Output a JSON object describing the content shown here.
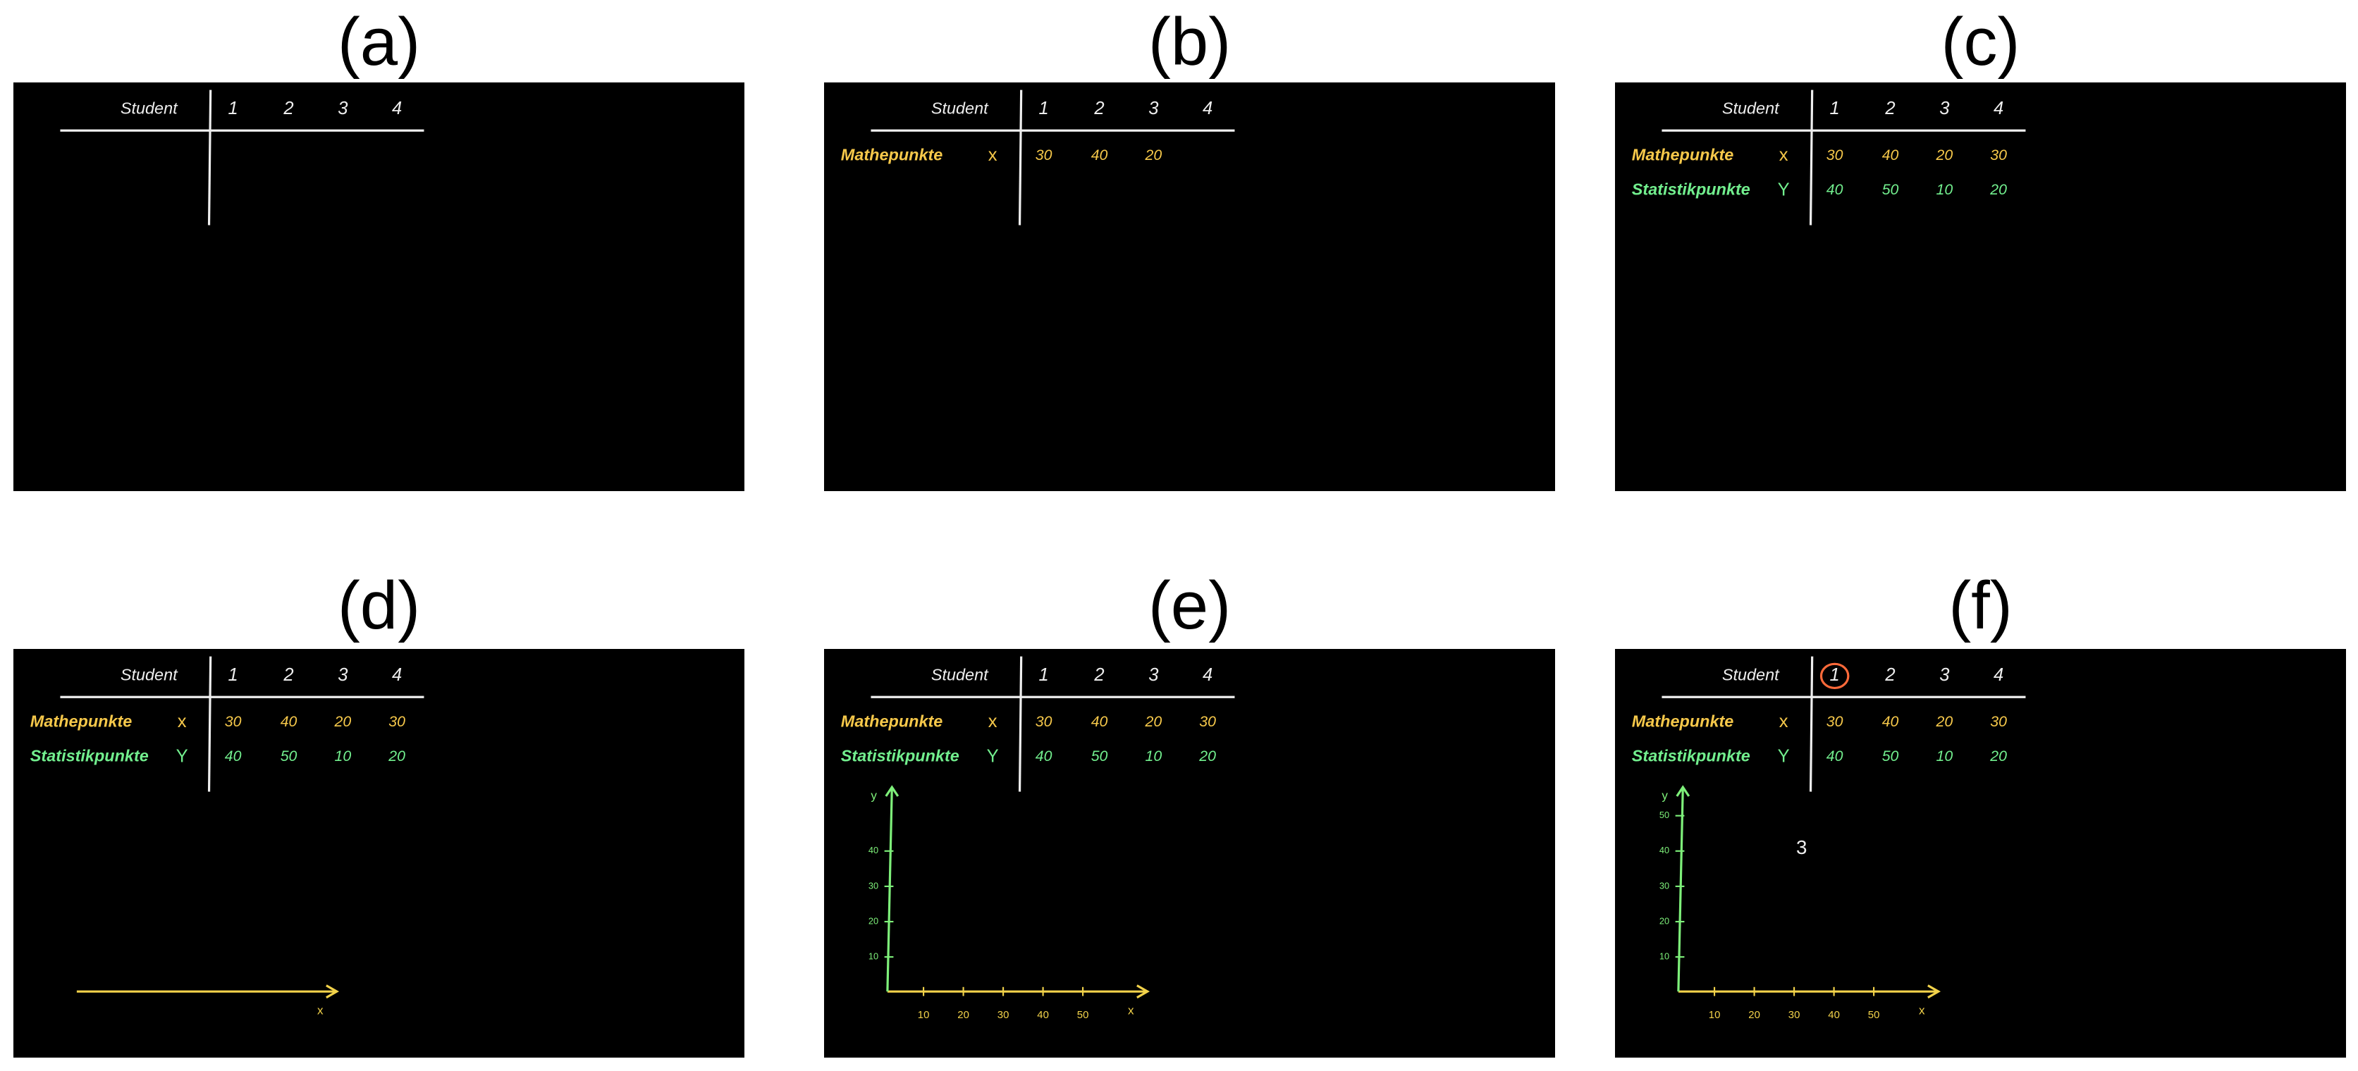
{
  "panels": [
    {
      "label": "(a)",
      "table": {
        "header": [
          "Student",
          "1",
          "2",
          "3",
          "4"
        ],
        "rows": []
      }
    },
    {
      "label": "(b)",
      "table": {
        "header": [
          "Student",
          "1",
          "2",
          "3",
          "4"
        ],
        "rows": [
          {
            "name": "Mathepunkte",
            "symbol": "x",
            "values": [
              30,
              40,
              20
            ],
            "color": "#f6c84a"
          }
        ]
      }
    },
    {
      "label": "(c)",
      "table": {
        "header": [
          "Student",
          "1",
          "2",
          "3",
          "4"
        ],
        "rows": [
          {
            "name": "Mathepunkte",
            "symbol": "x",
            "values": [
              30,
              40,
              20,
              30
            ],
            "color": "#f6c84a"
          },
          {
            "name": "Statistikpunkte",
            "symbol": "Y",
            "values": [
              40,
              50,
              10,
              20
            ],
            "color": "#72ef8e"
          }
        ]
      }
    },
    {
      "label": "(d)",
      "table": {
        "header": [
          "Student",
          "1",
          "2",
          "3",
          "4"
        ],
        "rows": [
          {
            "name": "Mathepunkte",
            "symbol": "x",
            "values": [
              30,
              40,
              20,
              30
            ],
            "color": "#f6c84a"
          },
          {
            "name": "Statistikpunkte",
            "symbol": "Y",
            "values": [
              40,
              50,
              10,
              20
            ],
            "color": "#72ef8e"
          }
        ]
      },
      "axis": {
        "x_label": "x",
        "x_color": "#f2d24a"
      }
    },
    {
      "label": "(e)",
      "table": {
        "header": [
          "Student",
          "1",
          "2",
          "3",
          "4"
        ],
        "rows": [
          {
            "name": "Mathepunkte",
            "symbol": "x",
            "values": [
              30,
              40,
              20,
              30
            ],
            "color": "#f6c84a"
          },
          {
            "name": "Statistikpunkte",
            "symbol": "Y",
            "values": [
              40,
              50,
              10,
              20
            ],
            "color": "#72ef8e"
          }
        ]
      },
      "axis": {
        "x_label": "x",
        "x_color": "#f2d24a",
        "y_label": "y",
        "y_color": "#7ef07a",
        "x_ticks": [
          "10",
          "20",
          "30",
          "40",
          "50"
        ],
        "y_ticks": [
          "10",
          "20",
          "30",
          "40"
        ]
      }
    },
    {
      "label": "(f)",
      "table": {
        "header": [
          "Student",
          "1",
          "2",
          "3",
          "4"
        ],
        "rows": [
          {
            "name": "Mathepunkte",
            "symbol": "x",
            "values": [
              30,
              40,
              20,
              30
            ],
            "color": "#f6c84a"
          },
          {
            "name": "Statistikpunkte",
            "symbol": "Y",
            "values": [
              40,
              50,
              10,
              20
            ],
            "color": "#72ef8e"
          }
        ]
      },
      "circled_header_index": 1,
      "annotation": "3",
      "axis": {
        "x_label": "x",
        "x_color": "#f2d24a",
        "y_label": "y",
        "y_color": "#7ef07a",
        "x_ticks": [
          "10",
          "20",
          "30",
          "40",
          "50"
        ],
        "y_ticks": [
          "10",
          "20",
          "30",
          "40",
          "50"
        ]
      }
    }
  ]
}
